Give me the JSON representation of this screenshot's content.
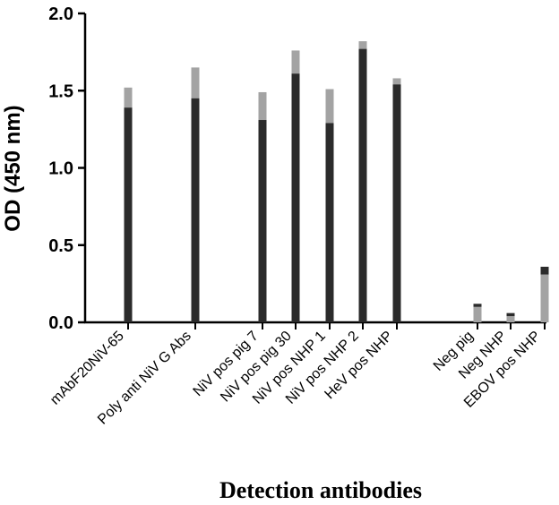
{
  "chart_data": {
    "type": "bar",
    "ylabel": "OD (450 nm)",
    "xlabel": "Detection antibodies",
    "ylim": [
      0,
      2.0
    ],
    "yticks": [
      "0.0",
      "0.5",
      "1.0",
      "1.5",
      "2.0"
    ],
    "grid": false,
    "legend": "none",
    "colors": {
      "dark": "#2b2b2b",
      "light": "#a3a3a3"
    },
    "categories": [
      {
        "label": "mAbF20NiV-65",
        "value": 1.46,
        "error_low": 1.39,
        "error_high": 1.52,
        "error_color": "light"
      },
      {
        "label": "Poly anti NiV G Abs",
        "value": 1.55,
        "error_low": 1.45,
        "error_high": 1.65,
        "error_color": "light"
      },
      {
        "label": "NiV pos pig 7",
        "value": 1.4,
        "error_low": 1.31,
        "error_high": 1.49,
        "error_color": "light"
      },
      {
        "label": "NiV pos pig 30",
        "value": 1.68,
        "error_low": 1.61,
        "error_high": 1.76,
        "error_color": "light"
      },
      {
        "label": "NiV pos NHP 1",
        "value": 1.4,
        "error_low": 1.29,
        "error_high": 1.51,
        "error_color": "light"
      },
      {
        "label": "NiV pos NHP 2",
        "value": 1.79,
        "error_low": 1.77,
        "error_high": 1.82,
        "error_color": "light"
      },
      {
        "label": "HeV pos NHP",
        "value": 1.56,
        "error_low": 1.54,
        "error_high": 1.58,
        "error_color": "light"
      },
      {
        "label": "Neg pig",
        "value": 0.1,
        "error_low": 0.1,
        "error_high": 0.12,
        "error_color": "dark",
        "bar_color": "light"
      },
      {
        "label": "Neg NHP",
        "value": 0.04,
        "error_low": 0.04,
        "error_high": 0.06,
        "error_color": "dark",
        "bar_color": "light"
      },
      {
        "label": "EBOV pos NHP",
        "value": 0.33,
        "error_low": 0.31,
        "error_high": 0.36,
        "error_color": "dark",
        "bar_color": "light"
      }
    ]
  }
}
